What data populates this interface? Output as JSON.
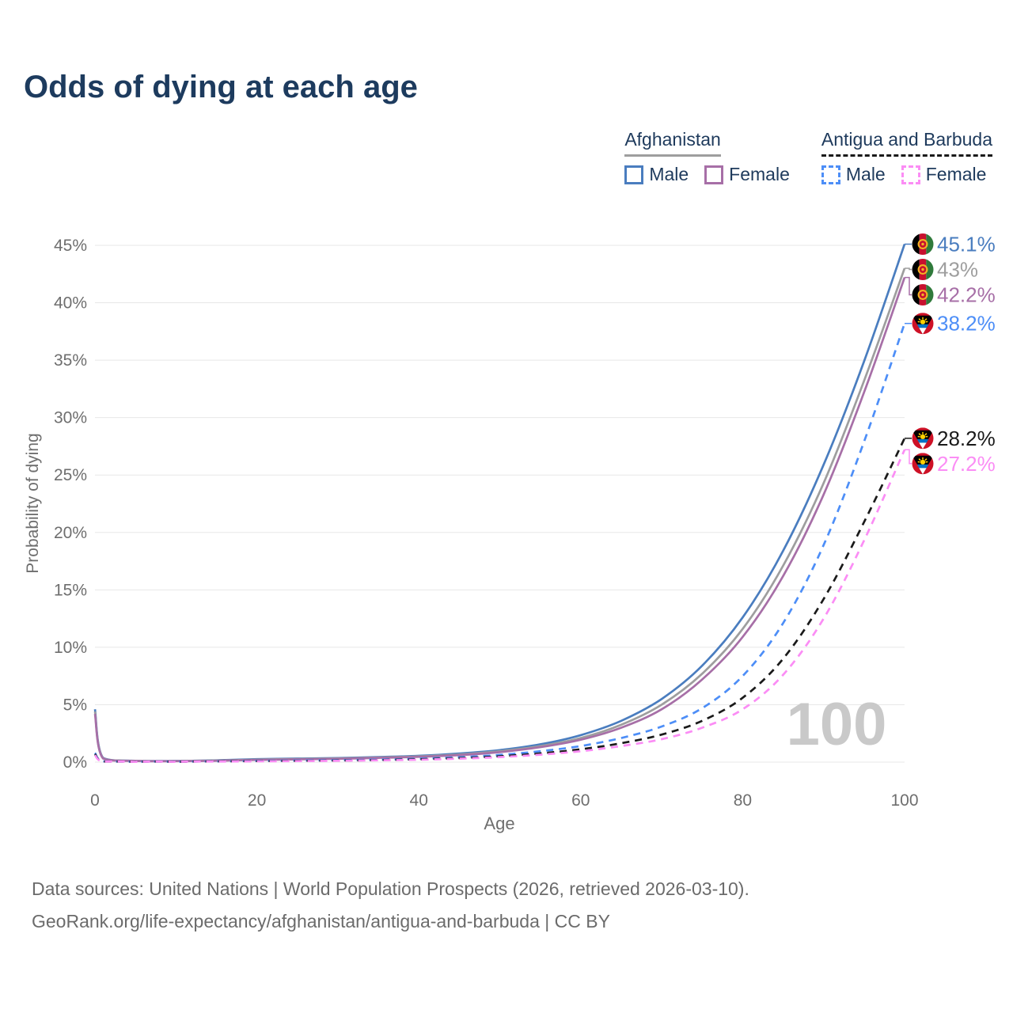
{
  "title": "Odds of dying at each age",
  "legend": {
    "groups": [
      {
        "name": "Afghanistan",
        "underline_style": "solid",
        "underline_color": "#9e9e9e",
        "items": [
          {
            "label": "Male",
            "color": "#4a7dbf",
            "dashed": false
          },
          {
            "label": "Female",
            "color": "#a76fa7",
            "dashed": false
          }
        ]
      },
      {
        "name": "Antigua and Barbuda",
        "underline_style": "dashed",
        "underline_color": "#1a1a1a",
        "items": [
          {
            "label": "Male",
            "color": "#4d8ef7",
            "dashed": true
          },
          {
            "label": "Female",
            "color": "#fb8df5",
            "dashed": true
          }
        ]
      }
    ]
  },
  "chart_data": {
    "type": "line",
    "title": "Odds of dying at each age",
    "xlabel": "Age",
    "ylabel": "Probability of dying",
    "xlim": [
      0,
      100
    ],
    "ylim": [
      0,
      45
    ],
    "grid": "horizontal-only",
    "watermark": "100",
    "x_ticks": [
      0,
      20,
      40,
      60,
      80,
      100
    ],
    "x_tick_labels": [
      "0",
      "20",
      "40",
      "60",
      "80",
      "100"
    ],
    "y_ticks": [
      0,
      5,
      10,
      15,
      20,
      25,
      30,
      35,
      40,
      45
    ],
    "y_tick_labels": [
      "0%",
      "5%",
      "10%",
      "15%",
      "20%",
      "25%",
      "30%",
      "35%",
      "40%",
      "45%"
    ],
    "x": [
      0,
      1,
      5,
      10,
      15,
      20,
      25,
      30,
      35,
      40,
      45,
      50,
      55,
      60,
      65,
      70,
      75,
      80,
      85,
      90,
      95,
      100
    ],
    "series": [
      {
        "id": "afghanistan-male",
        "country": "Afghanistan",
        "sex": "Male",
        "color": "#4a7dbf",
        "dashed": false,
        "end_label": "45.1%",
        "flag": "afg",
        "values": [
          4.6,
          0.37,
          0.12,
          0.1,
          0.16,
          0.26,
          0.31,
          0.36,
          0.44,
          0.55,
          0.75,
          1.05,
          1.55,
          2.35,
          3.6,
          5.5,
          8.4,
          12.6,
          18.4,
          25.9,
          34.9,
          45.1
        ]
      },
      {
        "id": "afghanistan-combined",
        "country": "Afghanistan",
        "sex": "Combined",
        "color": "#9e9e9e",
        "dashed": false,
        "end_label": "43%",
        "flag": "afg",
        "values": [
          4.4,
          0.34,
          0.11,
          0.09,
          0.14,
          0.22,
          0.27,
          0.32,
          0.4,
          0.5,
          0.67,
          0.95,
          1.4,
          2.1,
          3.25,
          5.0,
          7.7,
          11.6,
          17.1,
          24.3,
          33.2,
          43.0
        ]
      },
      {
        "id": "afghanistan-female",
        "country": "Afghanistan",
        "sex": "Female",
        "color": "#a76fa7",
        "dashed": false,
        "end_label": "42.2%",
        "flag": "afg",
        "values": [
          4.2,
          0.32,
          0.1,
          0.08,
          0.12,
          0.19,
          0.24,
          0.29,
          0.37,
          0.46,
          0.61,
          0.87,
          1.3,
          1.95,
          3.0,
          4.6,
          7.2,
          10.9,
          16.2,
          23.3,
          32.2,
          42.2
        ]
      },
      {
        "id": "antigua-and-barbuda-male",
        "country": "Antigua and Barbuda",
        "sex": "Male",
        "color": "#4d8ef7",
        "dashed": true,
        "end_label": "38.2%",
        "flag": "atg",
        "values": [
          0.8,
          0.06,
          0.03,
          0.03,
          0.07,
          0.11,
          0.14,
          0.17,
          0.22,
          0.3,
          0.43,
          0.63,
          0.95,
          1.4,
          2.1,
          3.1,
          4.7,
          7.5,
          12.1,
          18.9,
          27.9,
          38.2
        ]
      },
      {
        "id": "antigua-and-barbuda-combined",
        "country": "Antigua and Barbuda",
        "sex": "Combined",
        "color": "#1a1a1a",
        "dashed": true,
        "end_label": "28.2%",
        "flag": "atg",
        "values": [
          0.7,
          0.05,
          0.03,
          0.03,
          0.06,
          0.09,
          0.11,
          0.14,
          0.18,
          0.25,
          0.35,
          0.51,
          0.76,
          1.12,
          1.65,
          2.4,
          3.6,
          5.6,
          9.0,
          14.2,
          20.9,
          28.2
        ]
      },
      {
        "id": "antigua-and-barbuda-female",
        "country": "Antigua and Barbuda",
        "sex": "Female",
        "color": "#fb8df5",
        "dashed": true,
        "end_label": "27.2%",
        "flag": "atg",
        "values": [
          0.6,
          0.05,
          0.02,
          0.02,
          0.05,
          0.07,
          0.09,
          0.12,
          0.16,
          0.21,
          0.3,
          0.44,
          0.65,
          0.95,
          1.4,
          2.0,
          3.0,
          4.6,
          7.6,
          12.5,
          19.3,
          27.2
        ]
      }
    ]
  },
  "footer": {
    "line1": "Data sources: United Nations | World Population Prospects (2026, retrieved 2026-03-10).",
    "line2": "GeoRank.org/life-expectancy/afghanistan/antigua-and-barbuda | CC BY"
  }
}
